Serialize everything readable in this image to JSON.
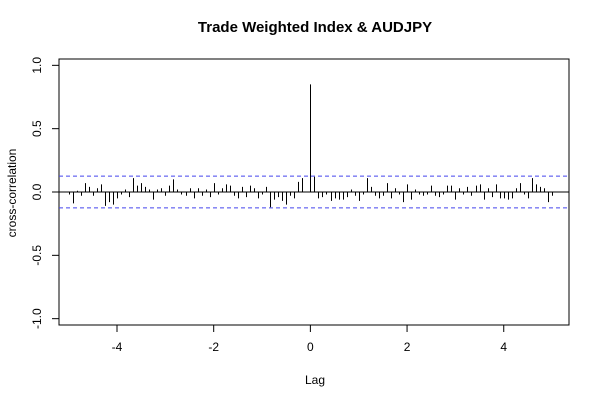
{
  "chart_data": {
    "type": "bar",
    "subtype": "cross-correlation",
    "title": "Trade Weighted Index & AUDJPY",
    "xlabel": "Lag",
    "ylabel": "cross-correlation",
    "xlim": [
      -5.2,
      5.35
    ],
    "ylim": [
      -1.05,
      1.05
    ],
    "x_ticks": [
      -4,
      -2,
      0,
      2,
      4
    ],
    "x_tick_labels": [
      "-4",
      "-2",
      "0",
      "2",
      "4"
    ],
    "y_ticks": [
      -1.0,
      -0.5,
      0.0,
      0.5,
      1.0
    ],
    "y_tick_labels": [
      "-1.0",
      "-0.5",
      "0.0",
      "0.5",
      "1.0"
    ],
    "confidence_bound": 0.125,
    "confidence_color": "#4444ee",
    "bar_color": "#000000",
    "grid": false,
    "lag_step": 0.0833,
    "x": [
      -5.0,
      -4.917,
      -4.833,
      -4.75,
      -4.667,
      -4.583,
      -4.5,
      -4.417,
      -4.333,
      -4.25,
      -4.167,
      -4.083,
      -4.0,
      -3.917,
      -3.833,
      -3.75,
      -3.667,
      -3.583,
      -3.5,
      -3.417,
      -3.333,
      -3.25,
      -3.167,
      -3.083,
      -3.0,
      -2.917,
      -2.833,
      -2.75,
      -2.667,
      -2.583,
      -2.5,
      -2.417,
      -2.333,
      -2.25,
      -2.167,
      -2.083,
      -2.0,
      -1.917,
      -1.833,
      -1.75,
      -1.667,
      -1.583,
      -1.5,
      -1.417,
      -1.333,
      -1.25,
      -1.167,
      -1.083,
      -1.0,
      -0.917,
      -0.833,
      -0.75,
      -0.667,
      -0.583,
      -0.5,
      -0.417,
      -0.333,
      -0.25,
      -0.167,
      -0.083,
      0.0,
      0.083,
      0.167,
      0.25,
      0.333,
      0.417,
      0.5,
      0.583,
      0.667,
      0.75,
      0.833,
      0.917,
      1.0,
      1.083,
      1.167,
      1.25,
      1.333,
      1.417,
      1.5,
      1.583,
      1.667,
      1.75,
      1.833,
      1.917,
      2.0,
      2.083,
      2.167,
      2.25,
      2.333,
      2.417,
      2.5,
      2.583,
      2.667,
      2.75,
      2.833,
      2.917,
      3.0,
      3.083,
      3.167,
      3.25,
      3.333,
      3.417,
      3.5,
      3.583,
      3.667,
      3.75,
      3.833,
      3.917,
      4.0,
      4.083,
      4.167,
      4.25,
      4.333,
      4.417,
      4.5,
      4.583,
      4.667,
      4.75,
      4.833,
      4.917,
      5.0
    ],
    "values": [
      -0.02,
      -0.09,
      0.01,
      -0.03,
      0.07,
      0.04,
      -0.03,
      0.03,
      0.06,
      -0.11,
      -0.08,
      -0.1,
      -0.05,
      -0.02,
      0.02,
      -0.04,
      0.11,
      0.05,
      0.07,
      0.04,
      0.02,
      -0.06,
      0.02,
      0.03,
      -0.03,
      0.05,
      0.1,
      0.02,
      -0.02,
      -0.03,
      0.03,
      -0.05,
      0.03,
      -0.03,
      0.02,
      -0.04,
      0.07,
      -0.02,
      0.03,
      0.06,
      0.05,
      -0.03,
      -0.05,
      0.04,
      -0.04,
      0.05,
      0.03,
      -0.05,
      -0.02,
      0.04,
      -0.12,
      -0.06,
      -0.04,
      -0.07,
      -0.1,
      -0.03,
      -0.05,
      0.08,
      0.11,
      0.0,
      0.85,
      0.12,
      -0.05,
      -0.04,
      -0.02,
      -0.07,
      -0.05,
      -0.06,
      -0.06,
      -0.04,
      0.02,
      -0.03,
      -0.07,
      -0.02,
      0.11,
      0.04,
      -0.03,
      -0.05,
      -0.03,
      0.07,
      -0.05,
      0.03,
      -0.02,
      -0.08,
      0.06,
      -0.06,
      0.02,
      -0.02,
      -0.03,
      -0.02,
      0.05,
      -0.03,
      -0.04,
      -0.02,
      0.05,
      0.05,
      -0.06,
      0.03,
      -0.02,
      0.04,
      -0.03,
      0.05,
      0.06,
      -0.06,
      0.03,
      -0.04,
      0.06,
      -0.05,
      -0.05,
      -0.06,
      -0.05,
      0.03,
      0.07,
      -0.02,
      -0.05,
      0.11,
      0.06,
      0.04,
      0.03,
      -0.08,
      -0.03
    ]
  }
}
